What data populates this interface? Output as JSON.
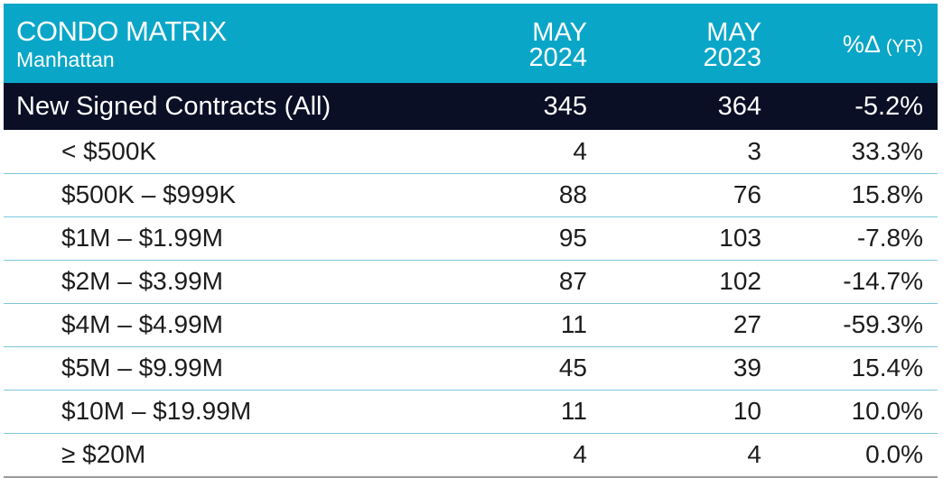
{
  "header": {
    "title": "CONDO MATRIX",
    "subtitle": "Manhattan",
    "col1_line1": "MAY",
    "col1_line2": "2024",
    "col2_line1": "MAY",
    "col2_line2": "2023",
    "col3_main": "%Δ",
    "col3_unit": "(YR)"
  },
  "colors": {
    "header_bg": "#0aa6c8",
    "total_bg": "#0b0f26",
    "row_divider": "#7cc8dc"
  },
  "chart_data": {
    "type": "table",
    "title": "CONDO MATRIX",
    "subtitle": "Manhattan",
    "columns": [
      "MAY 2024",
      "MAY 2023",
      "%Δ (YR)"
    ],
    "total": {
      "label": "New Signed Contracts (All)",
      "may_2024": "345",
      "may_2023": "364",
      "pct_change": "-5.2%"
    },
    "rows": [
      {
        "label": "< $500K",
        "may_2024": "4",
        "may_2023": "3",
        "pct_change": "33.3%"
      },
      {
        "label": "$500K – $999K",
        "may_2024": "88",
        "may_2023": "76",
        "pct_change": "15.8%"
      },
      {
        "label": "$1M – $1.99M",
        "may_2024": "95",
        "may_2023": "103",
        "pct_change": "-7.8%"
      },
      {
        "label": "$2M – $3.99M",
        "may_2024": "87",
        "may_2023": "102",
        "pct_change": "-14.7%"
      },
      {
        "label": "$4M – $4.99M",
        "may_2024": "11",
        "may_2023": "27",
        "pct_change": "-59.3%"
      },
      {
        "label": "$5M – $9.99M",
        "may_2024": "45",
        "may_2023": "39",
        "pct_change": "15.4%"
      },
      {
        "label": "$10M – $19.99M",
        "may_2024": "11",
        "may_2023": "10",
        "pct_change": "10.0%"
      },
      {
        "label": "≥ $20M",
        "may_2024": "4",
        "may_2023": "4",
        "pct_change": "0.0%"
      }
    ]
  }
}
